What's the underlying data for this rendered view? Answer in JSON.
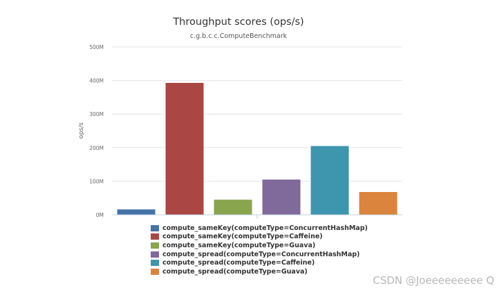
{
  "chart_data": {
    "type": "bar",
    "title": "Throughput scores (ops/s)",
    "subtitle": "c.g.b.c.c.ComputeBenchmark",
    "ylabel": "ops/s",
    "ylim": [
      0,
      500
    ],
    "y_unit_suffix": "M",
    "yticks": [
      "0M",
      "100M",
      "200M",
      "300M",
      "400M",
      "500M"
    ],
    "grid": true,
    "legend_position": "bottom",
    "series": [
      {
        "name": "compute_sameKey(computeType=ConcurrentHashMap)",
        "value": 17,
        "color": "#4572a7"
      },
      {
        "name": "compute_sameKey(computeType=Caffeine)",
        "value": 394,
        "color": "#aa4643"
      },
      {
        "name": "compute_sameKey(computeType=Guava)",
        "value": 46,
        "color": "#89a54e"
      },
      {
        "name": "compute_spread(computeType=ConcurrentHashMap)",
        "value": 106,
        "color": "#80699b"
      },
      {
        "name": "compute_spread(computeType=Caffeine)",
        "value": 206,
        "color": "#3d96ae"
      },
      {
        "name": "compute_spread(computeType=Guava)",
        "value": 69,
        "color": "#db843d"
      }
    ]
  },
  "watermark": "CSDN @Joeeeeeeeee Q"
}
